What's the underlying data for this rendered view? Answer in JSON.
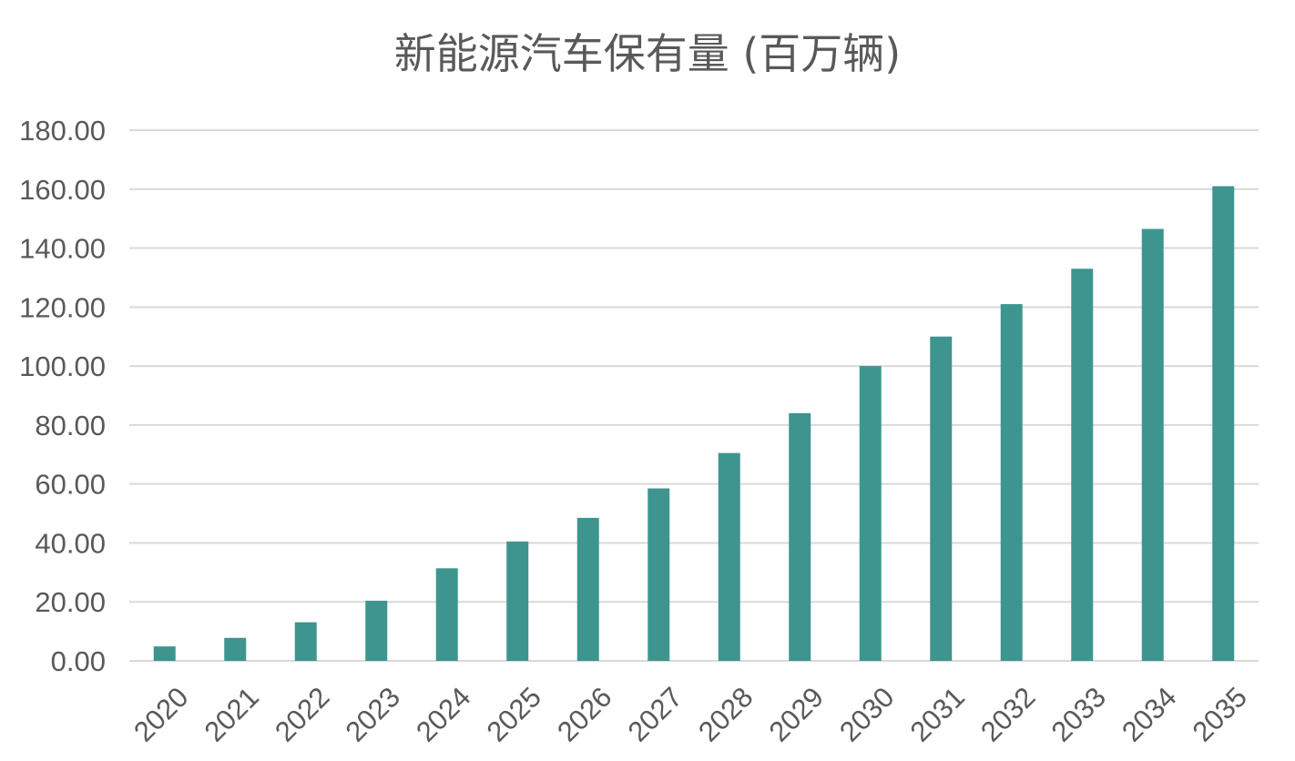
{
  "chart_data": {
    "type": "bar",
    "title": "新能源汽车保有量 (百万辆)",
    "xlabel": "",
    "ylabel": "",
    "categories": [
      "2020",
      "2021",
      "2022",
      "2023",
      "2024",
      "2025",
      "2026",
      "2027",
      "2028",
      "2029",
      "2030",
      "2031",
      "2032",
      "2033",
      "2034",
      "2035"
    ],
    "values": [
      4.9,
      7.8,
      13.1,
      20.4,
      31.4,
      40.5,
      48.5,
      58.5,
      70.5,
      84.0,
      100.0,
      110.0,
      121.0,
      133.0,
      146.5,
      161.0
    ],
    "ylim": [
      0,
      180
    ],
    "yticks": [
      "0.00",
      "20.00",
      "40.00",
      "60.00",
      "80.00",
      "100.00",
      "120.00",
      "140.00",
      "160.00",
      "180.00"
    ],
    "grid": true,
    "legend": "none",
    "bar_color": "#3e958f",
    "x_tick_rotation": -45
  }
}
